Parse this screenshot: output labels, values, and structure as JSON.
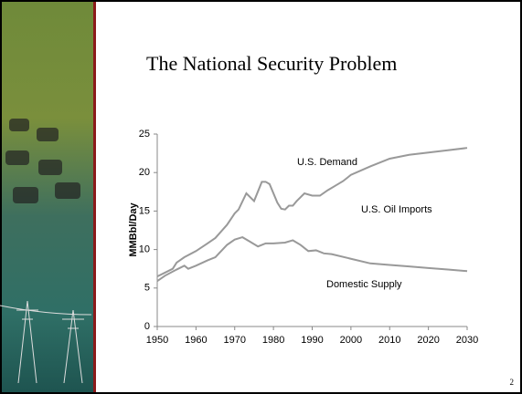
{
  "slide": {
    "title": "The National Security Problem",
    "page_number": "2"
  },
  "chart_data": {
    "type": "line",
    "y_label": "MMBbl/Day",
    "series": [
      {
        "name": "U.S. Demand",
        "color": "#999999",
        "x": [
          1950,
          1952,
          1954,
          1955,
          1957,
          1960,
          1963,
          1965,
          1968,
          1970,
          1971,
          1973,
          1975,
          1977,
          1978,
          1979,
          1981,
          1982,
          1983,
          1984,
          1985,
          1986,
          1988,
          1990,
          1992,
          1994,
          1996,
          1998,
          2000,
          2005,
          2010,
          2015,
          2020,
          2025,
          2030
        ],
        "values": [
          6.5,
          7,
          7.5,
          8.3,
          9,
          9.8,
          10.8,
          11.5,
          13.2,
          14.7,
          15.2,
          17.3,
          16.3,
          18.8,
          18.8,
          18.5,
          16.1,
          15.3,
          15.2,
          15.7,
          15.7,
          16.3,
          17.3,
          17.0,
          17.0,
          17.7,
          18.3,
          18.9,
          19.7,
          20.8,
          21.8,
          22.3,
          22.6,
          22.9,
          23.2
        ]
      },
      {
        "name": "Domestic Supply",
        "color": "#999999",
        "x": [
          1950,
          1952,
          1955,
          1957,
          1958,
          1960,
          1963,
          1965,
          1968,
          1970,
          1972,
          1974,
          1976,
          1978,
          1980,
          1983,
          1985,
          1987,
          1989,
          1991,
          1993,
          1995,
          2000,
          2005,
          2010,
          2015,
          2020,
          2025,
          2030
        ],
        "values": [
          5.9,
          6.6,
          7.4,
          7.9,
          7.5,
          7.9,
          8.6,
          9.0,
          10.6,
          11.3,
          11.6,
          11.0,
          10.4,
          10.8,
          10.8,
          10.9,
          11.2,
          10.6,
          9.8,
          9.9,
          9.5,
          9.4,
          8.8,
          8.2,
          8.0,
          7.8,
          7.6,
          7.4,
          7.2
        ]
      }
    ],
    "annotations": [
      "U.S. Oil Imports"
    ],
    "xlim": [
      1950,
      2030
    ],
    "xticks": [
      1950,
      1960,
      1970,
      1980,
      1990,
      2000,
      2010,
      2020,
      2030
    ],
    "ylim": [
      0,
      25
    ],
    "yticks": [
      0,
      5,
      10,
      15,
      20,
      25
    ],
    "grid": false
  }
}
